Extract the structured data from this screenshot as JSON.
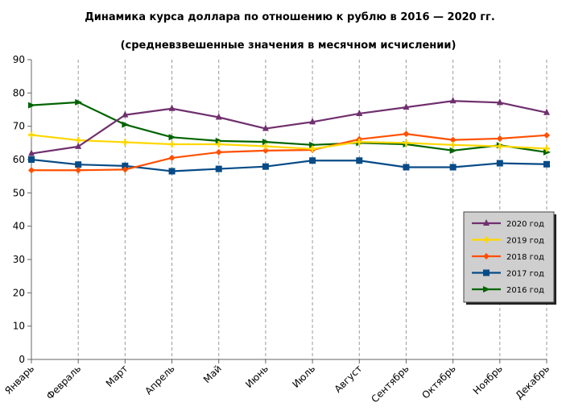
{
  "chart_data": {
    "type": "line",
    "title": "Динамика курса доллара по отношению к рублю в 2016 — 2020 гг.",
    "subtitle": "(средневзвешенные значения в месячном исчислении)",
    "xlabel": "",
    "ylabel": "",
    "ylim": [
      0,
      90
    ],
    "yticks": [
      0,
      10,
      20,
      30,
      40,
      50,
      60,
      70,
      80,
      90
    ],
    "grid": "vertical",
    "legend_position": "right",
    "categories": [
      "Январь",
      "Февраль",
      "Март",
      "Апрель",
      "Май",
      "Июнь",
      "Июль",
      "Август",
      "Сентябрь",
      "Октябрь",
      "Ноябрь",
      "Декабрь"
    ],
    "series": [
      {
        "name": "2020 год",
        "color": "#70306e",
        "marker": "triangle",
        "values": [
          61.8,
          63.9,
          73.4,
          75.3,
          72.7,
          69.3,
          71.3,
          73.8,
          75.7,
          77.6,
          77.1,
          74.1
        ]
      },
      {
        "name": "2019 год",
        "color": "#ffd700",
        "marker": "plus",
        "values": [
          67.4,
          65.8,
          65.2,
          64.6,
          64.6,
          64.0,
          63.2,
          65.3,
          65.0,
          64.4,
          64.0,
          63.3
        ]
      },
      {
        "name": "2018 год",
        "color": "#ff5000",
        "marker": "diamond",
        "values": [
          56.8,
          56.8,
          57.0,
          60.5,
          62.2,
          62.7,
          62.9,
          66.1,
          67.7,
          65.9,
          66.3,
          67.3
        ]
      },
      {
        "name": "2017 год",
        "color": "#074b87",
        "marker": "square",
        "values": [
          60.0,
          58.5,
          58.1,
          56.5,
          57.2,
          57.9,
          59.7,
          59.7,
          57.7,
          57.7,
          58.9,
          58.6
        ]
      },
      {
        "name": "2016 год",
        "color": "#006400",
        "marker": "arrow",
        "values": [
          76.3,
          77.2,
          70.5,
          66.7,
          65.6,
          65.3,
          64.4,
          65.0,
          64.6,
          62.7,
          64.3,
          62.2
        ]
      }
    ]
  }
}
